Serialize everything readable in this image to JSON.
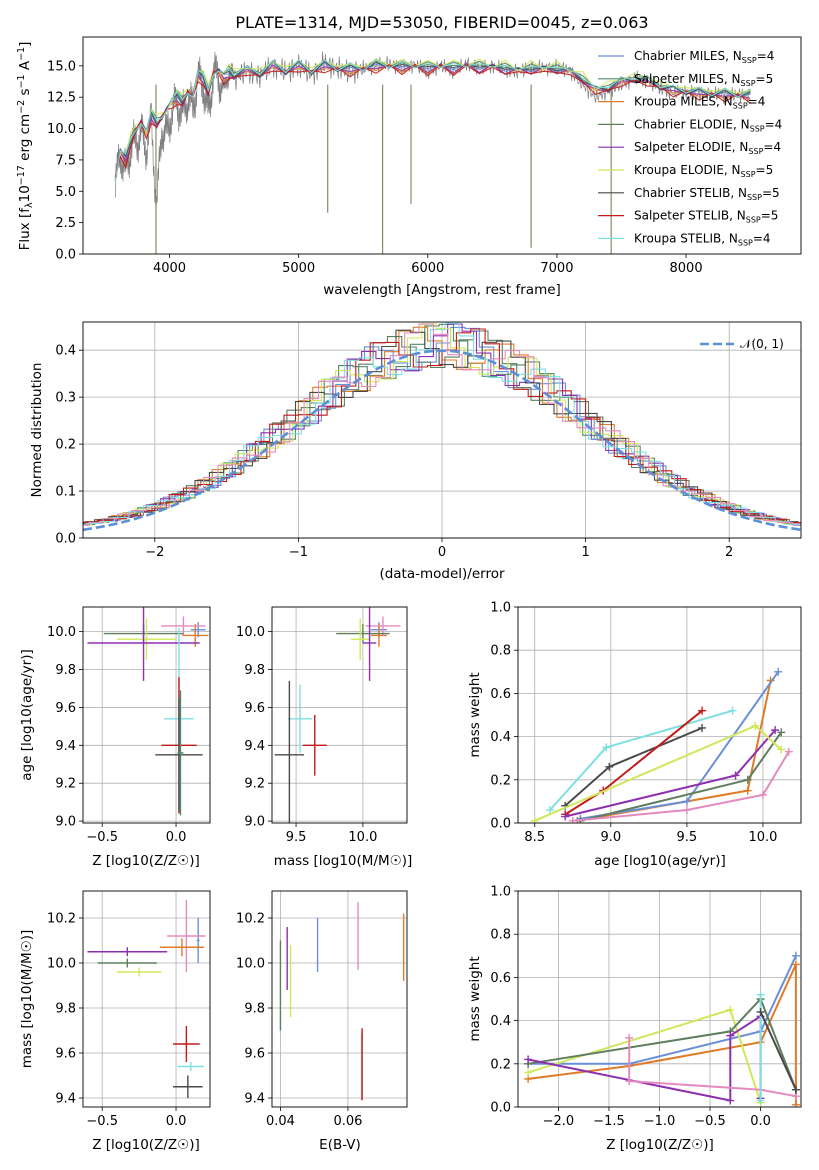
{
  "title": "PLATE=1314, MJD=53050, FIBERID=0045, z=0.063",
  "colors": {
    "Chabrier MILES": "#6a8fd8",
    "Salpeter MILES": "#4f8a6b",
    "Kroupa MILES": "#e07b28",
    "Chabrier ELODIE": "#5e7e5e",
    "Salpeter ELODIE": "#8e2fb0",
    "Kroupa ELODIE": "#cfe85a",
    "Chabrier STELIB": "#4a4a4a",
    "Salpeter STELIB": "#c41a1a",
    "Kroupa STELIB": "#7edfe0",
    "Kroupa pink": "#e58ac0"
  },
  "chart_data": [
    {
      "id": "spectrum",
      "type": "line",
      "xlabel": "wavelength [Angstrom, rest frame]",
      "ylabel": "Flux [f_λ10^-17 erg cm^-2 s^-1 A^-1]",
      "xlim": [
        3330,
        8890
      ],
      "ylim": [
        0,
        17.3
      ],
      "xticks": [
        4000,
        5000,
        6000,
        7000,
        8000
      ],
      "yticks": [
        0.0,
        2.5,
        5.0,
        7.5,
        10.0,
        12.5,
        15.0
      ],
      "grid": false,
      "legend_position": "right",
      "legend": [
        "Chabrier MILES, N_SSP=4",
        "Salpeter MILES, N_SSP=5",
        "Kroupa MILES, N_SSP=4",
        "Chabrier ELODIE, N_SSP=4",
        "Salpeter ELODIE, N_SSP=4",
        "Kroupa ELODIE, N_SSP=5",
        "Chabrier STELIB, N_SSP=5",
        "Salpeter STELIB, N_SSP=5",
        "Kroupa STELIB, N_SSP=4"
      ],
      "data_x": [
        3580,
        3620,
        3660,
        3700,
        3740,
        3780,
        3820,
        3860,
        3900,
        3940,
        3980,
        4020,
        4060,
        4100,
        4140,
        4180,
        4220,
        4260,
        4300,
        4340,
        4380,
        4420,
        4460,
        4500,
        4600,
        4700,
        4800,
        4900,
        5000,
        5100,
        5200,
        5300,
        5400,
        5500,
        5600,
        5700,
        5800,
        5900,
        6000,
        6100,
        6200,
        6300,
        6400,
        6500,
        6600,
        6700,
        6800,
        6900,
        7000,
        7100,
        7200,
        7300,
        7400,
        7500,
        7600,
        7700,
        7800,
        7900,
        8000,
        8100,
        8200,
        8300,
        8400,
        8500
      ],
      "data_y": [
        5.5,
        8.0,
        6.5,
        8.5,
        9.0,
        9.5,
        8.5,
        10.5,
        3.5,
        10.0,
        9.5,
        11.5,
        12.0,
        11.0,
        12.5,
        11.5,
        14.0,
        13.5,
        11.0,
        14.5,
        14.0,
        13.0,
        14.5,
        14.0,
        14.5,
        14.2,
        15.0,
        14.5,
        15.0,
        14.3,
        15.2,
        14.8,
        14.5,
        14.8,
        15.0,
        15.2,
        14.8,
        15.1,
        14.5,
        15.0,
        14.6,
        15.2,
        14.8,
        15.0,
        14.7,
        14.5,
        14.9,
        14.8,
        14.9,
        14.6,
        13.5,
        12.5,
        13.0,
        13.5,
        14.0,
        13.8,
        13.2,
        12.8,
        13.0,
        12.7,
        12.8,
        12.6,
        12.7,
        12.6
      ],
      "model_y": [
        6.0,
        8.0,
        7.5,
        9.0,
        10.0,
        10.5,
        9.5,
        11.0,
        10.5,
        11.0,
        11.5,
        12.0,
        12.5,
        12.2,
        13.0,
        12.5,
        14.2,
        14.0,
        13.0,
        14.5,
        14.5,
        14.0,
        14.5,
        14.3,
        14.6,
        14.4,
        15.0,
        14.6,
        15.0,
        14.6,
        15.0,
        14.8,
        14.7,
        14.8,
        15.0,
        15.0,
        14.9,
        15.0,
        14.8,
        15.0,
        14.8,
        15.0,
        14.9,
        14.9,
        14.8,
        14.6,
        14.8,
        14.7,
        14.8,
        14.5,
        14.0,
        13.0,
        13.3,
        13.7,
        14.0,
        13.8,
        13.4,
        13.0,
        13.0,
        12.8,
        12.8,
        12.7,
        12.7,
        12.6
      ],
      "spikes": [
        {
          "x": 3895,
          "y": 0.0
        },
        {
          "x": 5225,
          "y": 3.3
        },
        {
          "x": 5650,
          "y": 0.0
        },
        {
          "x": 5870,
          "y": 4.0
        },
        {
          "x": 6800,
          "y": 0.5
        },
        {
          "x": 7420,
          "y": 0.0
        }
      ]
    },
    {
      "id": "residuals",
      "type": "histogram",
      "xlabel": "(data-model)/error",
      "ylabel": "Normed distribution",
      "xlim": [
        -2.5,
        2.5
      ],
      "ylim": [
        0,
        0.46
      ],
      "xticks": [
        -2,
        -1,
        0,
        1,
        2
      ],
      "yticks": [
        0.0,
        0.1,
        0.2,
        0.3,
        0.4
      ],
      "grid": true,
      "legend": [
        "N(0,1)"
      ],
      "legend_position": "top-right",
      "bin_width": 0.1
    },
    {
      "id": "age_vs_Z",
      "type": "scatter",
      "xlabel": "Z [log10(Z/Z☉)]",
      "ylabel": "age  [log10(age/yr)]",
      "xlim": [
        -0.63,
        0.23
      ],
      "ylim": [
        8.99,
        10.13
      ],
      "xticks": [
        -0.5,
        0.0
      ],
      "yticks": [
        9.0,
        9.2,
        9.4,
        9.6,
        9.8,
        10.0
      ],
      "grid": true,
      "points": [
        {
          "series": "Chabrier MILES",
          "x": 0.15,
          "y": 10.01,
          "xerr": 0.05,
          "yerr": 0.04
        },
        {
          "series": "Kroupa MILES",
          "x": 0.13,
          "y": 9.98,
          "xerr": 0.09,
          "yerr": 0.06
        },
        {
          "series": "Kroupa pink",
          "x": 0.05,
          "y": 10.03,
          "xerr": 0.15,
          "yerr": 0.05
        },
        {
          "series": "Chabrier ELODIE",
          "x": -0.22,
          "y": 9.99,
          "xerr": 0.27,
          "yerr": 0.05
        },
        {
          "series": "Kroupa ELODIE",
          "x": -0.2,
          "y": 9.96,
          "xerr": 0.2,
          "yerr": 0.11
        },
        {
          "series": "Salpeter ELODIE",
          "x": -0.22,
          "y": 9.94,
          "xerr": 0.38,
          "yerr": 0.2
        },
        {
          "series": "Kroupa STELIB",
          "x": 0.02,
          "y": 9.54,
          "xerr": 0.1,
          "yerr": 0.48
        },
        {
          "series": "Salpeter STELIB",
          "x": 0.02,
          "y": 9.4,
          "xerr": 0.12,
          "yerr": 0.36
        },
        {
          "series": "Chabrier STELIB",
          "x": 0.02,
          "y": 9.35,
          "xerr": 0.16,
          "yerr": 0.3
        },
        {
          "series": "Salpeter MILES",
          "x": 0.03,
          "y": 9.36,
          "xerr": 0.02,
          "yerr": 0.33
        }
      ]
    },
    {
      "id": "age_vs_mass",
      "type": "scatter",
      "xlabel": "mass [log10(M/M☉)]",
      "ylabel": "",
      "xlim": [
        9.32,
        10.33
      ],
      "ylim": [
        8.99,
        10.13
      ],
      "xticks": [
        9.5,
        10.0
      ],
      "yticks": [
        9.0,
        9.2,
        9.4,
        9.6,
        9.8,
        10.0
      ],
      "grid": true,
      "points": [
        {
          "series": "Chabrier MILES",
          "x": 10.12,
          "y": 10.01,
          "xerr": 0.06,
          "yerr": 0.04
        },
        {
          "series": "Kroupa MILES",
          "x": 10.12,
          "y": 9.98,
          "xerr": 0.06,
          "yerr": 0.06
        },
        {
          "series": "Kroupa pink",
          "x": 10.15,
          "y": 10.03,
          "xerr": 0.13,
          "yerr": 0.05
        },
        {
          "series": "Chabrier ELODIE",
          "x": 10.0,
          "y": 9.99,
          "xerr": 0.2,
          "yerr": 0.05
        },
        {
          "series": "Kroupa ELODIE",
          "x": 9.98,
          "y": 9.96,
          "xerr": 0.07,
          "yerr": 0.11
        },
        {
          "series": "Salpeter ELODIE",
          "x": 10.05,
          "y": 9.94,
          "xerr": 0.05,
          "yerr": 0.2
        },
        {
          "series": "Kroupa STELIB",
          "x": 9.53,
          "y": 9.54,
          "xerr": 0.09,
          "yerr": 0.18
        },
        {
          "series": "Salpeter STELIB",
          "x": 9.64,
          "y": 9.4,
          "xerr": 0.09,
          "yerr": 0.16
        },
        {
          "series": "Chabrier STELIB",
          "x": 9.45,
          "y": 9.35,
          "xerr": 0.11,
          "yerr": 0.39
        }
      ]
    },
    {
      "id": "weight_vs_age",
      "type": "line",
      "xlabel": "age  [log10(age/yr)]",
      "ylabel": "mass weight",
      "xlim": [
        8.39,
        10.25
      ],
      "ylim": [
        0,
        1
      ],
      "xticks": [
        8.5,
        9.0,
        9.5,
        10.0
      ],
      "yticks": [
        0.0,
        0.2,
        0.4,
        0.6,
        0.8,
        1.0
      ],
      "grid": true,
      "series": [
        {
          "name": "Kroupa STELIB",
          "x": [
            8.6,
            8.97,
            9.8
          ],
          "y": [
            0.06,
            0.35,
            0.52
          ]
        },
        {
          "name": "Chabrier STELIB",
          "x": [
            8.7,
            8.99,
            9.6
          ],
          "y": [
            0.08,
            0.26,
            0.44
          ]
        },
        {
          "name": "Salpeter STELIB",
          "x": [
            8.7,
            8.95,
            9.6
          ],
          "y": [
            0.04,
            0.15,
            0.52
          ]
        },
        {
          "name": "Kroupa MILES",
          "x": [
            8.78,
            9.9,
            10.05
          ],
          "y": [
            0.01,
            0.15,
            0.66
          ]
        },
        {
          "name": "Chabrier MILES",
          "x": [
            8.8,
            9.5,
            10.1
          ],
          "y": [
            0.02,
            0.1,
            0.7
          ]
        },
        {
          "name": "Salpeter ELODIE",
          "x": [
            8.7,
            9.82,
            10.08
          ],
          "y": [
            0.03,
            0.22,
            0.43
          ]
        },
        {
          "name": "Chabrier ELODIE",
          "x": [
            8.8,
            9.9,
            10.12
          ],
          "y": [
            0.01,
            0.2,
            0.42
          ]
        },
        {
          "name": "Kroupa ELODIE",
          "x": [
            8.5,
            9.95,
            10.12
          ],
          "y": [
            0.01,
            0.45,
            0.34
          ]
        },
        {
          "name": "Kroupa pink",
          "x": [
            8.75,
            9.5,
            10.0,
            10.17
          ],
          "y": [
            0.01,
            0.06,
            0.13,
            0.33
          ]
        }
      ]
    },
    {
      "id": "mass_vs_Z",
      "type": "scatter",
      "xlabel": "Z [log10(Z/Z☉)]",
      "ylabel": "mass [log10(M/M☉)]",
      "xlim": [
        -0.63,
        0.23
      ],
      "ylim": [
        9.36,
        10.32
      ],
      "xticks": [
        -0.5,
        0.0
      ],
      "yticks": [
        9.4,
        9.6,
        9.8,
        10.0,
        10.2
      ],
      "grid": true,
      "points": [
        {
          "series": "Chabrier MILES",
          "x": 0.15,
          "y": 10.1,
          "xerr": 0.01,
          "yerr": 0.1
        },
        {
          "series": "Kroupa pink",
          "x": 0.07,
          "y": 10.12,
          "xerr": 0.13,
          "yerr": 0.16
        },
        {
          "series": "Kroupa MILES",
          "x": 0.04,
          "y": 10.07,
          "xerr": 0.15,
          "yerr": 0.04
        },
        {
          "series": "Salpeter ELODIE",
          "x": -0.33,
          "y": 10.05,
          "xerr": 0.27,
          "yerr": 0.02
        },
        {
          "series": "Chabrier ELODIE",
          "x": -0.33,
          "y": 10.0,
          "xerr": 0.2,
          "yerr": 0.02
        },
        {
          "series": "Kroupa ELODIE",
          "x": -0.25,
          "y": 9.96,
          "xerr": 0.15,
          "yerr": 0.02
        },
        {
          "series": "Salpeter STELIB",
          "x": 0.07,
          "y": 9.64,
          "xerr": 0.09,
          "yerr": 0.08
        },
        {
          "series": "Kroupa STELIB",
          "x": 0.1,
          "y": 9.54,
          "xerr": 0.09,
          "yerr": 0.02
        },
        {
          "series": "Chabrier STELIB",
          "x": 0.08,
          "y": 9.45,
          "xerr": 0.1,
          "yerr": 0.05
        }
      ]
    },
    {
      "id": "mass_vs_ebv",
      "type": "scatter",
      "xlabel": "E(B-V)",
      "ylabel": "",
      "xlim": [
        0.0375,
        0.0775
      ],
      "ylim": [
        9.36,
        10.32
      ],
      "xticks": [
        0.04,
        0.06
      ],
      "yticks": [
        9.4,
        9.6,
        9.8,
        10.0,
        10.2
      ],
      "grid": true,
      "points": [
        {
          "series": "Chabrier ELODIE",
          "x": 0.04,
          "y": 9.9,
          "yerr": 0.2
        },
        {
          "series": "Salpeter ELODIE",
          "x": 0.042,
          "y": 10.02,
          "yerr": 0.14
        },
        {
          "series": "Kroupa ELODIE",
          "x": 0.043,
          "y": 9.92,
          "yerr": 0.16
        },
        {
          "series": "Chabrier MILES",
          "x": 0.051,
          "y": 10.08,
          "yerr": 0.12
        },
        {
          "series": "Kroupa pink",
          "x": 0.063,
          "y": 10.12,
          "yerr": 0.15
        },
        {
          "series": "Kroupa STELIB",
          "x": 0.064,
          "y": 9.54,
          "yerr": 0.15
        },
        {
          "series": "Salpeter STELIB",
          "x": 0.0642,
          "y": 9.55,
          "yerr": 0.16
        },
        {
          "series": "Kroupa MILES",
          "x": 0.0765,
          "y": 10.07,
          "yerr": 0.15
        }
      ]
    },
    {
      "id": "weight_vs_Z",
      "type": "line",
      "xlabel": "Z [log10(Z/Z☉)]",
      "ylabel": "mass weight",
      "xlim": [
        -2.4,
        0.4
      ],
      "ylim": [
        0,
        1
      ],
      "xticks": [
        -2.0,
        -1.5,
        -1.0,
        -0.5,
        0.0
      ],
      "yticks": [
        0.0,
        0.2,
        0.4,
        0.6,
        0.8,
        1.0
      ],
      "grid": true,
      "series": [
        {
          "name": "Chabrier MILES",
          "x": [
            -2.3,
            -1.3,
            0.0,
            0.35
          ],
          "y": [
            0.2,
            0.2,
            0.35,
            0.7
          ]
        },
        {
          "name": "Kroupa MILES",
          "x": [
            -2.3,
            -1.3,
            0.0,
            0.35,
            0.35
          ],
          "y": [
            0.13,
            0.19,
            0.3,
            0.66,
            0.01
          ]
        },
        {
          "name": "Kroupa ELODIE",
          "x": [
            -2.3,
            -0.3,
            0.0
          ],
          "y": [
            0.16,
            0.45,
            0.02
          ]
        },
        {
          "name": "Chabrier ELODIE",
          "x": [
            -2.3,
            -0.3,
            0.0,
            0.35
          ],
          "y": [
            0.2,
            0.35,
            0.5,
            0.08
          ]
        },
        {
          "name": "Salpeter ELODIE",
          "x": [
            -2.3,
            -0.3,
            -0.3,
            0.0,
            0.0
          ],
          "y": [
            0.22,
            0.03,
            0.33,
            0.42,
            0.04
          ]
        },
        {
          "name": "Kroupa pink",
          "x": [
            -1.3,
            -1.3,
            0.0,
            0.35
          ],
          "y": [
            0.32,
            0.12,
            0.08,
            0.05
          ]
        },
        {
          "name": "Kroupa STELIB",
          "x": [
            0.0,
            0.0
          ],
          "y": [
            0.52,
            0.03
          ]
        },
        {
          "name": "Chabrier STELIB",
          "x": [
            0.0,
            0.35
          ],
          "y": [
            0.44,
            0.08
          ]
        }
      ]
    }
  ],
  "labels": {
    "spec_xlabel": "wavelength [Angstrom, rest frame]",
    "hist_xlabel": "(data-model)/error",
    "hist_ylabel": "Normed distribution",
    "hist_legend": "N(0,1)",
    "z_label": "Z [log10(Z/Z☉)]",
    "age_label": "age  [log10(age/yr)]",
    "mass_label": "mass [log10(M/M☉)]",
    "ebv_label": "E(B-V)",
    "weight_label": "mass weight"
  }
}
